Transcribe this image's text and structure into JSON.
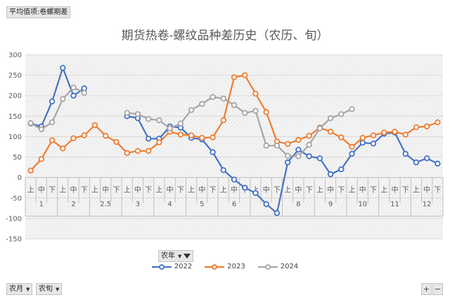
{
  "field_button_label": "平均值项:卷螺期差",
  "filter_button_label": "农年",
  "row_fields": [
    "农月",
    "农旬"
  ],
  "zoom": {
    "plus": "+",
    "minus": "−"
  },
  "colors": {
    "2022": "#4472c4",
    "2023": "#ed7d31",
    "2024": "#a5a5a5"
  },
  "chart_data": {
    "type": "line",
    "title": "期货热卷-螺纹品种差历史（农历、旬）",
    "xlabel": "",
    "ylabel": "",
    "ylim": [
      -150,
      300
    ],
    "yticks": [
      -150,
      -100,
      -50,
      0,
      50,
      100,
      150,
      200,
      250,
      300
    ],
    "grid": true,
    "legend_position": "bottom",
    "categories": [
      "上",
      "中",
      "下",
      "上",
      "中",
      "下",
      "上",
      "中",
      "下",
      "上",
      "中",
      "下",
      "上",
      "中",
      "下",
      "上",
      "中",
      "下",
      "上",
      "中",
      "下",
      "上",
      "中",
      "下",
      "上",
      "中",
      "下",
      "上",
      "中",
      "下",
      "上",
      "中",
      "下",
      "上",
      "中",
      "下",
      "上",
      "中",
      "下"
    ],
    "months": [
      "1",
      "2",
      "2.5",
      "3",
      "4",
      "5",
      "6",
      "8",
      "9",
      "10",
      "11",
      "12"
    ],
    "month_spans": [
      [
        0,
        3
      ],
      [
        3,
        6
      ],
      [
        6,
        9
      ],
      [
        9,
        12
      ],
      [
        12,
        15
      ],
      [
        15,
        18
      ],
      [
        18,
        21
      ],
      [
        21,
        24
      ],
      [
        24,
        27
      ],
      [
        27,
        30
      ],
      [
        30,
        33
      ],
      [
        33,
        36
      ],
      [
        36,
        39
      ]
    ],
    "month_labels": [
      "1",
      "2",
      "2.5",
      "3",
      "4",
      "5",
      "6",
      "",
      "8",
      "9",
      "10",
      "11",
      "12"
    ],
    "series": [
      {
        "name": "2022",
        "values": [
          132,
          125,
          186,
          268,
          200,
          218,
          null,
          null,
          null,
          150,
          145,
          95,
          95,
          125,
          122,
          97,
          93,
          62,
          18,
          -5,
          -25,
          -38,
          -65,
          -87,
          37,
          68,
          52,
          47,
          8,
          20,
          58,
          85,
          83,
          107,
          110,
          58,
          37,
          47,
          34
        ]
      },
      {
        "name": "2023",
        "values": [
          17,
          45,
          91,
          71,
          96,
          103,
          128,
          102,
          87,
          60,
          65,
          65,
          86,
          112,
          105,
          103,
          97,
          98,
          140,
          245,
          250,
          205,
          160,
          88,
          82,
          92,
          102,
          122,
          112,
          98,
          75,
          97,
          103,
          110,
          112,
          105,
          123,
          125,
          135
        ]
      },
      {
        "name": "2024",
        "values": [
          133,
          118,
          135,
          192,
          220,
          207,
          null,
          null,
          null,
          158,
          155,
          143,
          140,
          120,
          132,
          165,
          180,
          197,
          193,
          177,
          158,
          163,
          78,
          78,
          53,
          52,
          80,
          120,
          145,
          155,
          167,
          null,
          null,
          null,
          null,
          null,
          null,
          null,
          null
        ]
      }
    ]
  }
}
